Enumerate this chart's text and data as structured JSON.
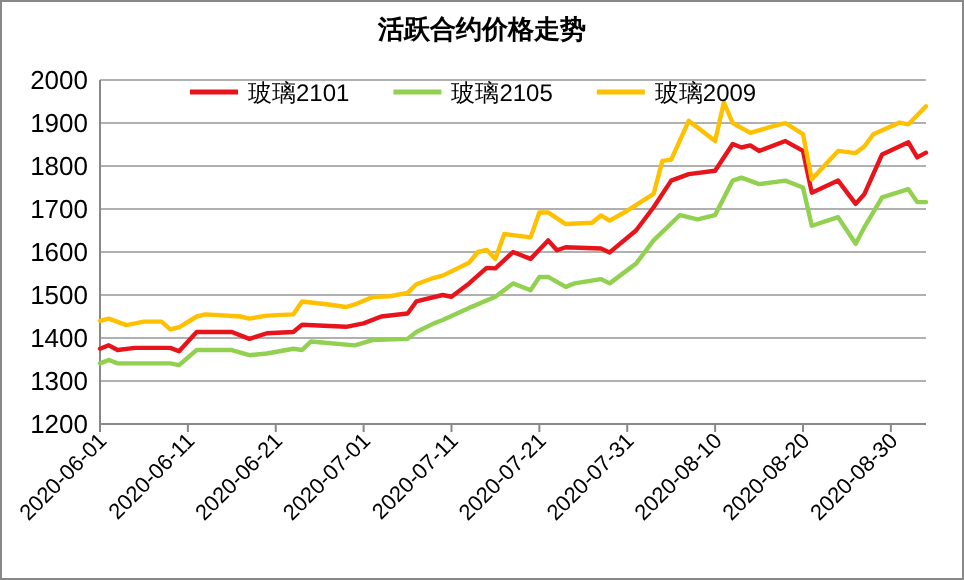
{
  "chart_data": {
    "type": "line",
    "title": "活跃合约价格走势",
    "xlim": [
      "2020-06-01",
      "2020-09-03"
    ],
    "xticks": [
      "2020-06-01",
      "2020-06-11",
      "2020-06-21",
      "2020-07-01",
      "2020-07-11",
      "2020-07-21",
      "2020-07-31",
      "2020-08-10",
      "2020-08-20",
      "2020-08-30"
    ],
    "ylim": [
      1200,
      2000
    ],
    "yticks": [
      1200,
      1300,
      1400,
      1500,
      1600,
      1700,
      1800,
      1900,
      2000
    ],
    "grid": "y",
    "legend": "top",
    "marker": "none",
    "line_style": "solid",
    "series": [
      {
        "name": "玻璃2101",
        "color": "#e8141c",
        "x": [
          "2020-06-01",
          "2020-06-02",
          "2020-06-03",
          "2020-06-05",
          "2020-06-09",
          "2020-06-10",
          "2020-06-12",
          "2020-06-16",
          "2020-06-18",
          "2020-06-20",
          "2020-06-23",
          "2020-06-24",
          "2020-06-29",
          "2020-07-01",
          "2020-07-03",
          "2020-07-06",
          "2020-07-07",
          "2020-07-10",
          "2020-07-11",
          "2020-07-13",
          "2020-07-15",
          "2020-07-16",
          "2020-07-18",
          "2020-07-20",
          "2020-07-22",
          "2020-07-23",
          "2020-07-24",
          "2020-07-28",
          "2020-07-29",
          "2020-08-01",
          "2020-08-03",
          "2020-08-05",
          "2020-08-07",
          "2020-08-10",
          "2020-08-12",
          "2020-08-13",
          "2020-08-14",
          "2020-08-15",
          "2020-08-18",
          "2020-08-20",
          "2020-08-21",
          "2020-08-24",
          "2020-08-26",
          "2020-08-27",
          "2020-08-29",
          "2020-09-01",
          "2020-09-02",
          "2020-09-03"
        ],
        "values": [
          1375,
          1383,
          1372,
          1377,
          1377,
          1369,
          1414,
          1414,
          1398,
          1411,
          1414,
          1431,
          1426,
          1434,
          1450,
          1457,
          1485,
          1500,
          1496,
          1527,
          1563,
          1562,
          1600,
          1584,
          1627,
          1604,
          1611,
          1608,
          1599,
          1650,
          1704,
          1766,
          1781,
          1789,
          1851,
          1843,
          1848,
          1835,
          1858,
          1835,
          1738,
          1766,
          1712,
          1735,
          1827,
          1855,
          1820,
          1831
        ]
      },
      {
        "name": "玻璃2105",
        "color": "#92d050",
        "x": [
          "2020-06-01",
          "2020-06-02",
          "2020-06-03",
          "2020-06-09",
          "2020-06-10",
          "2020-06-12",
          "2020-06-16",
          "2020-06-18",
          "2020-06-20",
          "2020-06-23",
          "2020-06-24",
          "2020-06-25",
          "2020-06-30",
          "2020-07-02",
          "2020-07-06",
          "2020-07-07",
          "2020-07-09",
          "2020-07-10",
          "2020-07-13",
          "2020-07-16",
          "2020-07-18",
          "2020-07-20",
          "2020-07-21",
          "2020-07-22",
          "2020-07-24",
          "2020-07-25",
          "2020-07-28",
          "2020-07-29",
          "2020-08-01",
          "2020-08-03",
          "2020-08-06",
          "2020-08-08",
          "2020-08-10",
          "2020-08-12",
          "2020-08-13",
          "2020-08-15",
          "2020-08-18",
          "2020-08-20",
          "2020-08-21",
          "2020-08-24",
          "2020-08-26",
          "2020-08-27",
          "2020-08-29",
          "2020-09-01",
          "2020-09-02",
          "2020-09-03"
        ],
        "values": [
          1341,
          1349,
          1341,
          1341,
          1337,
          1372,
          1372,
          1360,
          1364,
          1375,
          1372,
          1392,
          1383,
          1395,
          1398,
          1414,
          1434,
          1442,
          1470,
          1496,
          1527,
          1511,
          1542,
          1542,
          1519,
          1527,
          1537,
          1527,
          1573,
          1627,
          1686,
          1676,
          1686,
          1766,
          1773,
          1758,
          1766,
          1750,
          1661,
          1681,
          1619,
          1658,
          1727,
          1746,
          1716,
          1716
        ]
      },
      {
        "name": "玻璃2009",
        "color": "#ffc000",
        "x": [
          "2020-06-01",
          "2020-06-02",
          "2020-06-04",
          "2020-06-06",
          "2020-06-08",
          "2020-06-09",
          "2020-06-10",
          "2020-06-12",
          "2020-06-13",
          "2020-06-17",
          "2020-06-18",
          "2020-06-20",
          "2020-06-23",
          "2020-06-24",
          "2020-06-27",
          "2020-06-29",
          "2020-06-30",
          "2020-07-02",
          "2020-07-04",
          "2020-07-06",
          "2020-07-07",
          "2020-07-09",
          "2020-07-10",
          "2020-07-13",
          "2020-07-14",
          "2020-07-15",
          "2020-07-16",
          "2020-07-17",
          "2020-07-20",
          "2020-07-21",
          "2020-07-22",
          "2020-07-24",
          "2020-07-27",
          "2020-07-28",
          "2020-07-29",
          "2020-07-31",
          "2020-08-03",
          "2020-08-04",
          "2020-08-05",
          "2020-08-07",
          "2020-08-10",
          "2020-08-11",
          "2020-08-12",
          "2020-08-14",
          "2020-08-16",
          "2020-08-18",
          "2020-08-20",
          "2020-08-21",
          "2020-08-24",
          "2020-08-26",
          "2020-08-27",
          "2020-08-28",
          "2020-08-31",
          "2020-09-01",
          "2020-09-03"
        ],
        "values": [
          1440,
          1445,
          1430,
          1438,
          1438,
          1420,
          1425,
          1450,
          1455,
          1450,
          1445,
          1452,
          1455,
          1485,
          1478,
          1472,
          1478,
          1495,
          1497,
          1505,
          1525,
          1540,
          1545,
          1575,
          1600,
          1605,
          1584,
          1642,
          1634,
          1692,
          1692,
          1665,
          1668,
          1685,
          1673,
          1696,
          1735,
          1812,
          1815,
          1905,
          1858,
          1948,
          1900,
          1877,
          1889,
          1900,
          1874,
          1769,
          1835,
          1830,
          1846,
          1874,
          1901,
          1897,
          1939
        ]
      }
    ]
  }
}
